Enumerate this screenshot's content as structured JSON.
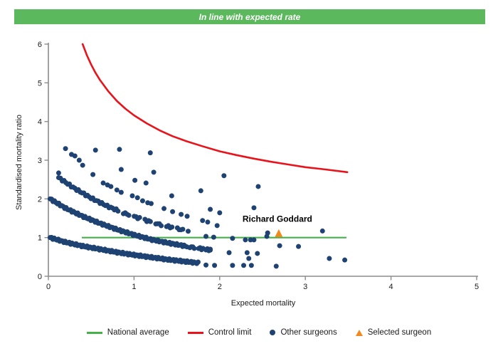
{
  "banner": {
    "text": "In line with expected rate",
    "bg": "#5bb85c"
  },
  "colors": {
    "banner_green": "#5bb85c",
    "national_average_green": "#46b04a",
    "control_limit_red": "#e8131b",
    "surgeon_navy": "#1e4373",
    "selected_orange": "#f08a1e",
    "axis_gray": "#8c8c8c"
  },
  "chart_data": {
    "type": "scatter",
    "title": "",
    "xlabel": "Expected mortality",
    "ylabel": "Standardised mortality ratio",
    "xlim": [
      0,
      5
    ],
    "ylim": [
      0,
      6
    ],
    "x_ticks": [
      0,
      1,
      2,
      3,
      4,
      5
    ],
    "y_ticks": [
      0,
      1,
      2,
      3,
      4,
      5,
      6
    ],
    "grid": false,
    "legend_position": "bottom",
    "national_average": {
      "y": 1.0,
      "x_start": 0.39,
      "x_end": 3.48
    },
    "control_limit": {
      "points": [
        [
          0.4,
          6.0
        ],
        [
          0.45,
          5.71
        ],
        [
          0.5,
          5.47
        ],
        [
          0.55,
          5.26
        ],
        [
          0.6,
          5.08
        ],
        [
          0.7,
          4.78
        ],
        [
          0.8,
          4.53
        ],
        [
          0.9,
          4.33
        ],
        [
          1.0,
          4.16
        ],
        [
          1.15,
          3.95
        ],
        [
          1.3,
          3.77
        ],
        [
          1.45,
          3.62
        ],
        [
          1.6,
          3.5
        ],
        [
          1.8,
          3.36
        ],
        [
          2.0,
          3.23
        ],
        [
          2.2,
          3.13
        ],
        [
          2.4,
          3.04
        ],
        [
          2.6,
          2.96
        ],
        [
          2.8,
          2.89
        ],
        [
          3.0,
          2.82
        ],
        [
          3.2,
          2.77
        ],
        [
          3.49,
          2.69
        ]
      ]
    },
    "selected_surgeon": {
      "label": "Richard Goddard",
      "x": 2.69,
      "y": 1.06
    },
    "other_surgeons": {
      "bands": [
        {
          "name": "band-1",
          "step": 0.016,
          "points": [
            [
              0.02,
              1.0
            ],
            [
              0.2,
              0.88
            ],
            [
              0.4,
              0.78
            ],
            [
              0.6,
              0.7
            ],
            [
              0.8,
              0.62
            ],
            [
              1.0,
              0.55
            ],
            [
              1.2,
              0.49
            ],
            [
              1.4,
              0.43
            ],
            [
              1.6,
              0.38
            ],
            [
              1.76,
              0.34
            ]
          ]
        },
        {
          "name": "band-2",
          "step": 0.017,
          "gap_from": 1.62,
          "points": [
            [
              0.02,
              2.0
            ],
            [
              0.2,
              1.76
            ],
            [
              0.4,
              1.55
            ],
            [
              0.6,
              1.37
            ],
            [
              0.8,
              1.21
            ],
            [
              1.0,
              1.07
            ],
            [
              1.2,
              0.95
            ],
            [
              1.4,
              0.86
            ],
            [
              1.6,
              0.78
            ],
            [
              1.9,
              0.67
            ]
          ]
        },
        {
          "name": "band-3",
          "step": 0.021,
          "gap_from": 0.75,
          "points": [
            [
              0.12,
              2.55
            ],
            [
              0.3,
              2.28
            ],
            [
              0.5,
              2.02
            ],
            [
              0.7,
              1.8
            ],
            [
              0.9,
              1.62
            ],
            [
              1.1,
              1.47
            ],
            [
              1.3,
              1.34
            ],
            [
              1.5,
              1.23
            ],
            [
              1.64,
              1.16
            ]
          ]
        }
      ],
      "dots": [
        [
          0.2,
          3.3
        ],
        [
          0.27,
          3.15
        ],
        [
          0.31,
          3.11
        ],
        [
          0.36,
          3.0
        ],
        [
          0.4,
          2.87
        ],
        [
          0.52,
          2.63
        ],
        [
          0.64,
          2.41
        ],
        [
          0.69,
          2.36
        ],
        [
          0.73,
          2.32
        ],
        [
          0.8,
          2.23
        ],
        [
          0.85,
          2.17
        ],
        [
          0.98,
          2.08
        ],
        [
          1.04,
          2.03
        ],
        [
          1.1,
          1.95
        ],
        [
          1.16,
          1.9
        ],
        [
          1.2,
          1.88
        ],
        [
          1.35,
          1.75
        ],
        [
          1.45,
          1.67
        ],
        [
          1.55,
          1.6
        ],
        [
          1.62,
          1.55
        ],
        [
          0.12,
          2.67
        ],
        [
          0.55,
          3.26
        ],
        [
          0.83,
          3.28
        ],
        [
          1.19,
          3.19
        ],
        [
          0.85,
          2.76
        ],
        [
          1.01,
          2.48
        ],
        [
          1.14,
          2.41
        ],
        [
          1.23,
          2.69
        ],
        [
          1.44,
          2.08
        ],
        [
          1.78,
          2.21
        ],
        [
          2.05,
          2.6
        ],
        [
          2.45,
          2.32
        ],
        [
          2.4,
          1.77
        ],
        [
          1.89,
          1.73
        ],
        [
          2.0,
          1.64
        ],
        [
          1.8,
          1.44
        ],
        [
          1.86,
          1.4
        ],
        [
          1.97,
          1.31
        ],
        [
          3.2,
          1.17
        ],
        [
          2.56,
          1.12
        ],
        [
          1.84,
          1.03
        ],
        [
          1.93,
          1.01
        ],
        [
          2.15,
          0.98
        ],
        [
          2.55,
          1.03
        ],
        [
          2.3,
          0.94
        ],
        [
          2.36,
          0.94
        ],
        [
          2.4,
          0.94
        ],
        [
          2.7,
          0.79
        ],
        [
          2.92,
          0.77
        ],
        [
          1.84,
          0.68
        ],
        [
          1.89,
          0.7
        ],
        [
          2.11,
          0.61
        ],
        [
          2.32,
          0.61
        ],
        [
          2.44,
          0.59
        ],
        [
          2.34,
          0.46
        ],
        [
          3.28,
          0.46
        ],
        [
          3.46,
          0.42
        ],
        [
          1.84,
          0.29
        ],
        [
          1.94,
          0.28
        ],
        [
          2.15,
          0.28
        ],
        [
          2.28,
          0.28
        ],
        [
          2.37,
          0.28
        ],
        [
          2.66,
          0.26
        ]
      ]
    }
  },
  "legend": {
    "items": [
      {
        "label": "National average",
        "type": "line",
        "color": "#46b04a"
      },
      {
        "label": "Control limit",
        "type": "line",
        "color": "#e8131b"
      },
      {
        "label": "Other surgeons",
        "type": "dot",
        "color": "#1e4373"
      },
      {
        "label": "Selected surgeon",
        "type": "triangle",
        "color": "#f08a1e"
      }
    ]
  }
}
